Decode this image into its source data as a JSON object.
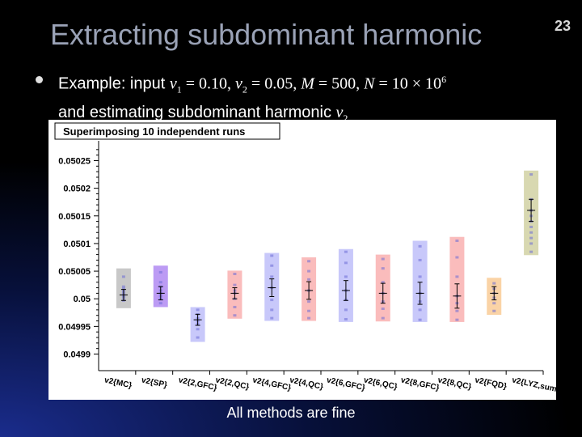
{
  "slide": {
    "title": "Extracting subdominant harmonic",
    "number": "23",
    "bullet": {
      "prefix": "Example: input ",
      "v1": "v",
      "v1_sub": "1",
      "v1_val": " = 0.10, ",
      "v2": "v",
      "v2_sub": "2",
      "v2_val": " = 0.05, ",
      "M": "M",
      "M_val": " = 500, ",
      "N": "N",
      "N_val": " = 10 × 10",
      "N_exp": "6",
      "line2_prefix": "and estimating subdominant harmonic ",
      "v2b": "v",
      "v2b_sub": "2"
    },
    "caption": "All methods are fine"
  },
  "chart_data": {
    "type": "range",
    "title": "Superimposing 10 independent runs",
    "ylim": [
      0.04987,
      0.05028
    ],
    "yticks": [
      "0.04990",
      "0.04995",
      "0.05000",
      "0.05005",
      "0.05010",
      "0.05015",
      "0.05020",
      "0.05025"
    ],
    "ytick_labels": [
      "0.0499",
      "0.04995",
      "0.05",
      "0.05005",
      "0.0501",
      "0.05015",
      "0.0502",
      "0.05025"
    ],
    "categories": [
      "v2{MC}",
      "v2{SP}",
      "v2{2,GFC}",
      "v2{2,QC}",
      "v2{4,GFC}",
      "v2{4,QC}",
      "v2{6,GFC}",
      "v2{6,QC}",
      "v2{8,GFC}",
      "v2{8,QC}",
      "v2{FQD}",
      "v2{LYZ,sum}"
    ],
    "series": [
      {
        "name": "v2{MC}",
        "color": "#b0b0b0",
        "low": 0.049983,
        "high": 0.050055,
        "center": 0.050007,
        "err": 1e-05,
        "points": [
          0.049997,
          0.050002,
          0.050006,
          0.05001,
          0.050014,
          0.050018,
          0.050022,
          0.05004
        ]
      },
      {
        "name": "v2{SP}",
        "color": "#a070f0",
        "low": 0.049985,
        "high": 0.05006,
        "center": 0.05001,
        "err": 1.2e-05,
        "points": [
          0.049992,
          0.05,
          0.050005,
          0.05001,
          0.050015,
          0.050022,
          0.05003,
          0.050048
        ]
      },
      {
        "name": "v2{2,GFC}",
        "color": "#b0b0f8",
        "low": 0.049922,
        "high": 0.049985,
        "center": 0.049962,
        "err": 1e-05,
        "points": [
          0.04993,
          0.049945,
          0.049955,
          0.04996,
          0.049965,
          0.049972,
          0.04998
        ]
      },
      {
        "name": "v2{2,QC}",
        "color": "#f8a0a0",
        "low": 0.049964,
        "high": 0.050051,
        "center": 0.05001,
        "err": 1e-05,
        "points": [
          0.04997,
          0.049985,
          0.05,
          0.05001,
          0.050015,
          0.050025,
          0.050045
        ]
      },
      {
        "name": "v2{4,GFC}",
        "color": "#b0b0f8",
        "low": 0.04996,
        "high": 0.050083,
        "center": 0.05002,
        "err": 1.6e-05,
        "points": [
          0.049965,
          0.04998,
          0.049998,
          0.05002,
          0.05004,
          0.05006,
          0.050078
        ]
      },
      {
        "name": "v2{4,QC}",
        "color": "#f8a0a0",
        "low": 0.04996,
        "high": 0.050075,
        "center": 0.050015,
        "err": 1.6e-05,
        "points": [
          0.049965,
          0.049978,
          0.049995,
          0.050015,
          0.050035,
          0.05005,
          0.050068
        ]
      },
      {
        "name": "v2{6,GFC}",
        "color": "#b0b0f8",
        "low": 0.049958,
        "high": 0.05009,
        "center": 0.050015,
        "err": 1.8e-05,
        "points": [
          0.049963,
          0.04998,
          0.049998,
          0.050015,
          0.05004,
          0.050065,
          0.050085
        ]
      },
      {
        "name": "v2{6,QC}",
        "color": "#f8a0a0",
        "low": 0.049959,
        "high": 0.05008,
        "center": 0.05001,
        "err": 1.8e-05,
        "points": [
          0.049965,
          0.049982,
          0.049995,
          0.05001,
          0.05003,
          0.050055,
          0.050072
        ]
      },
      {
        "name": "v2{8,GFC}",
        "color": "#b0b0f8",
        "low": 0.049958,
        "high": 0.050105,
        "center": 0.05001,
        "err": 2e-05,
        "points": [
          0.049962,
          0.04998,
          0.049995,
          0.05001,
          0.05004,
          0.05007,
          0.050095
        ]
      },
      {
        "name": "v2{8,QC}",
        "color": "#f8a0a0",
        "low": 0.049958,
        "high": 0.050112,
        "center": 0.050005,
        "err": 2.2e-05,
        "points": [
          0.049962,
          0.049978,
          0.049992,
          0.050005,
          0.05004,
          0.050075,
          0.050105
        ]
      },
      {
        "name": "v2{FQD}",
        "color": "#f8c080",
        "low": 0.049971,
        "high": 0.050038,
        "center": 0.05001,
        "err": 1.2e-05,
        "points": [
          0.049978,
          0.049992,
          0.050002,
          0.05001,
          0.050018,
          0.050028
        ]
      },
      {
        "name": "v2{LYZ,sum}",
        "color": "#c8c890",
        "low": 0.050079,
        "high": 0.050232,
        "center": 0.05016,
        "err": 2e-05,
        "points": [
          0.050085,
          0.0501,
          0.05011,
          0.05012,
          0.05013,
          0.05014,
          0.05015,
          0.05016,
          0.05018,
          0.050225
        ]
      }
    ]
  }
}
